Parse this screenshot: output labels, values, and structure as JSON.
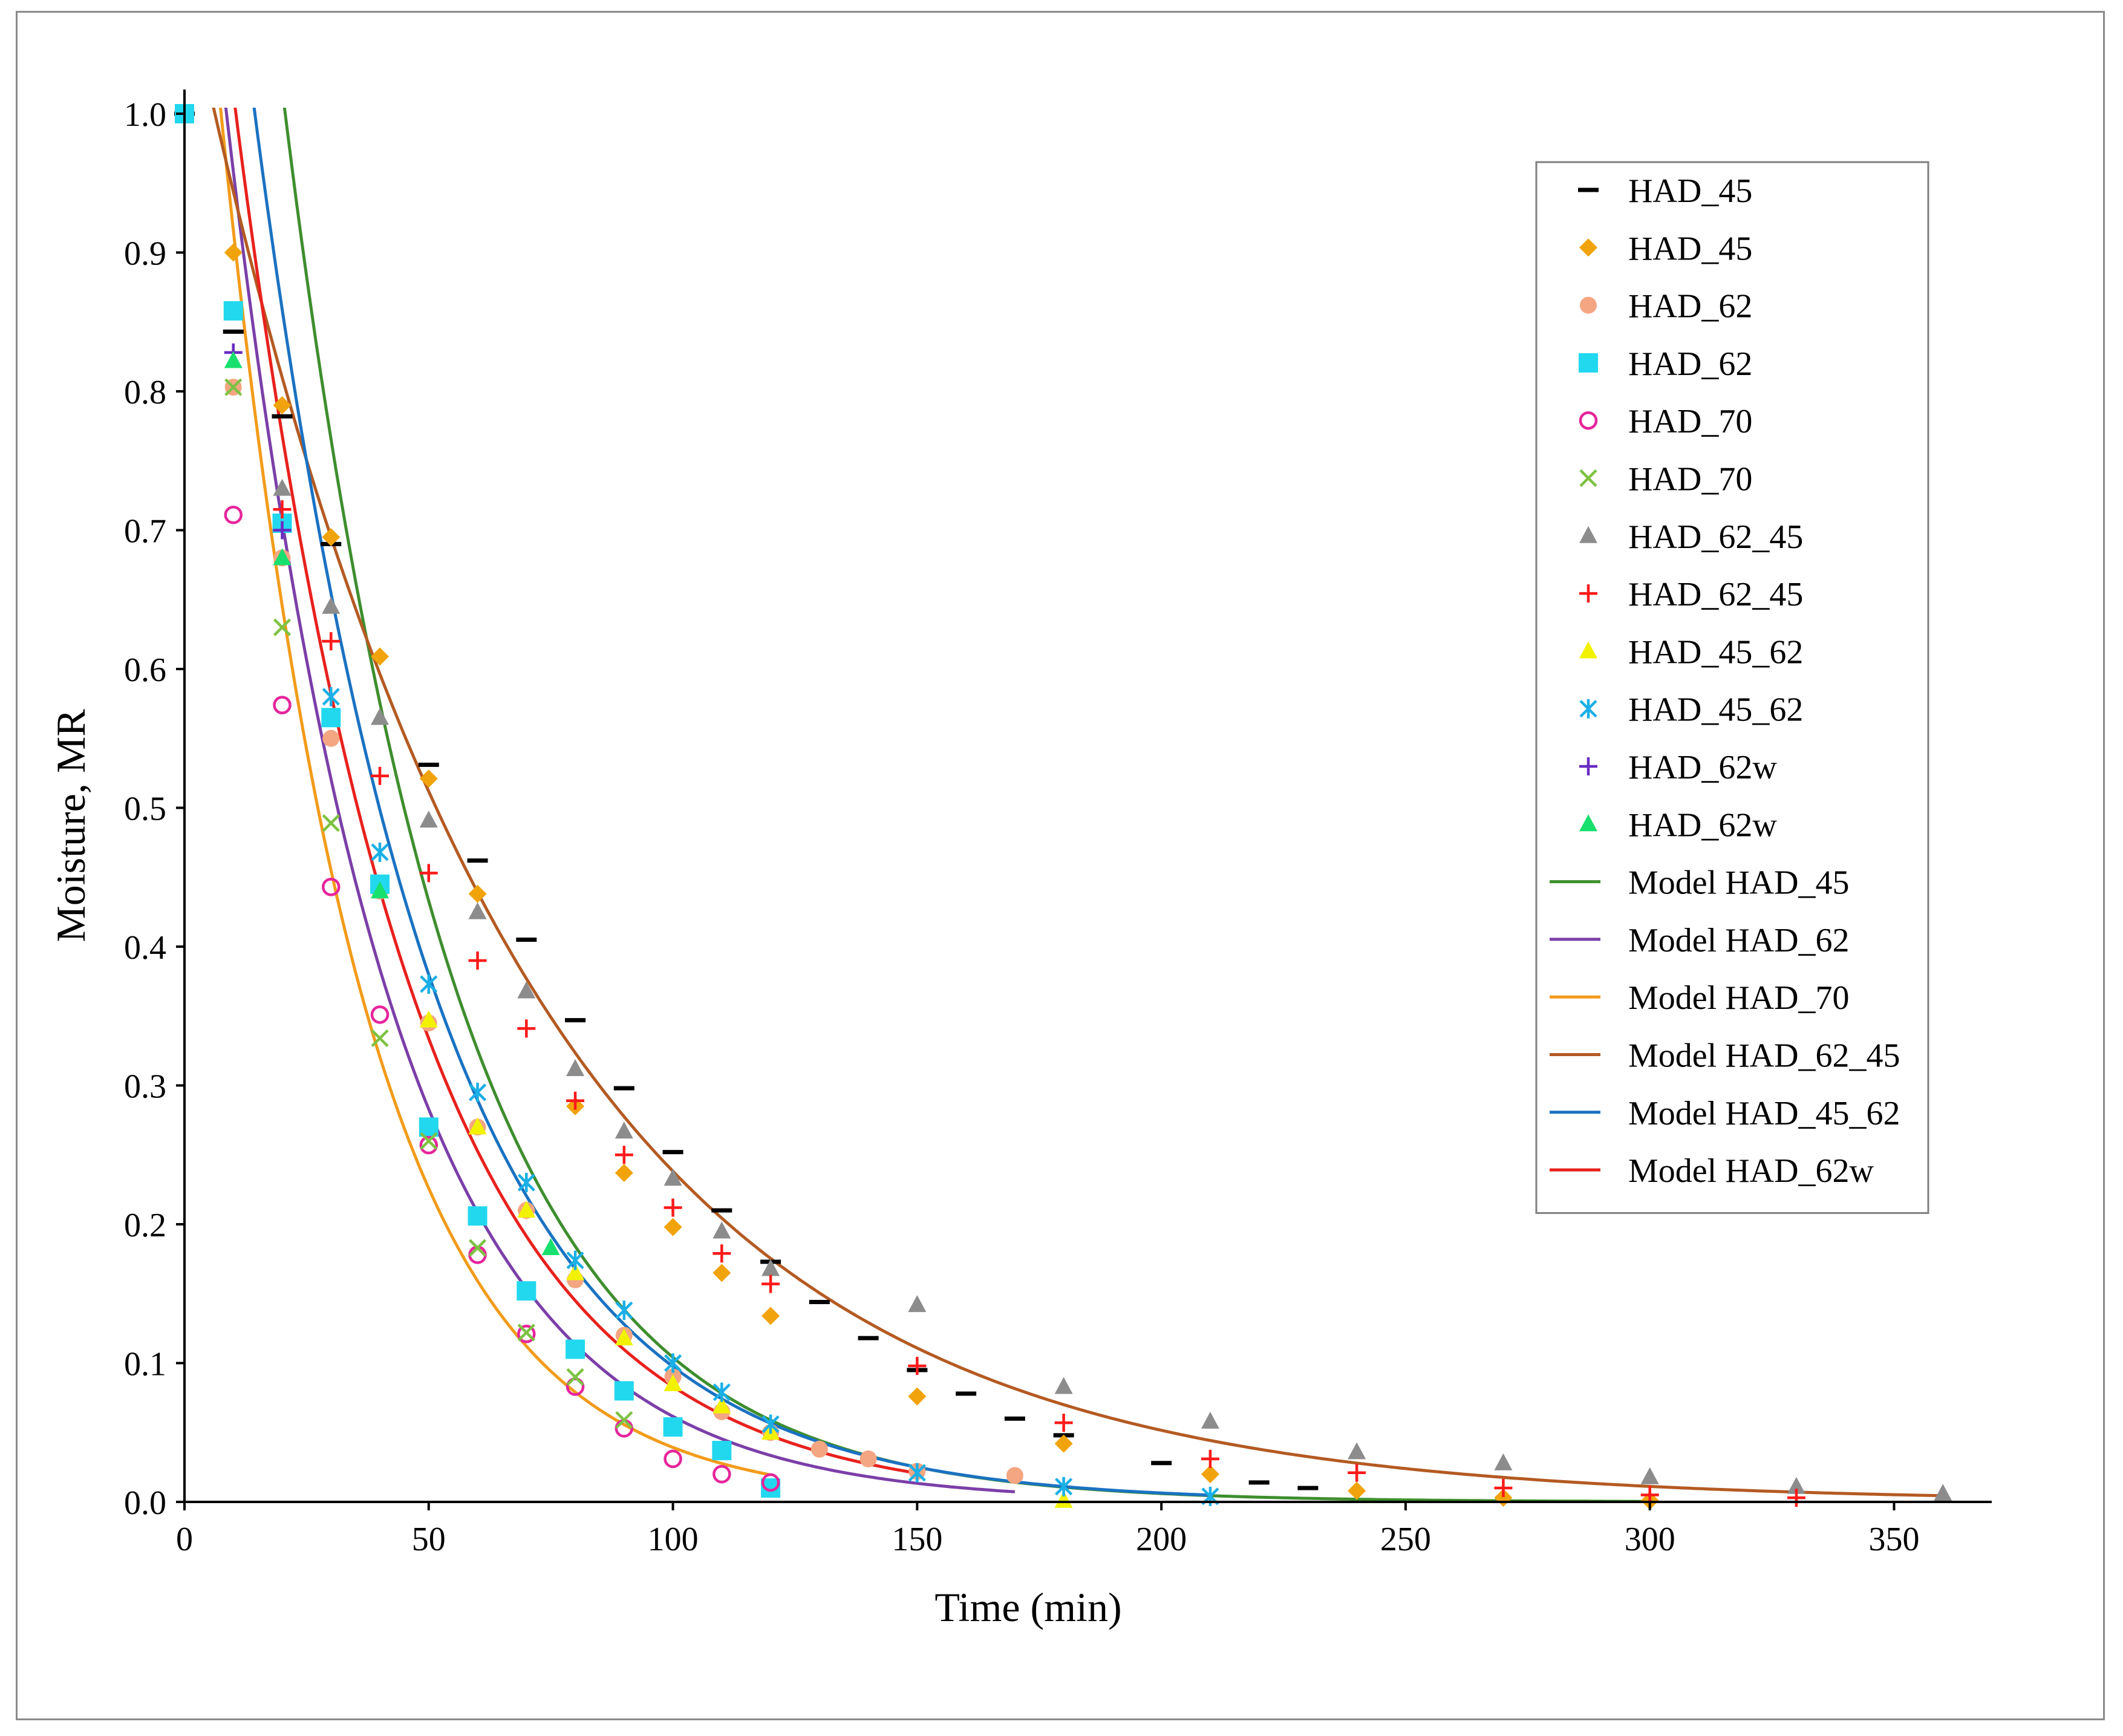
{
  "chart_data": {
    "type": "scatter",
    "title": "",
    "xlabel": "Time (min)",
    "ylabel": "Moisture, MR",
    "xlim": [
      0,
      370
    ],
    "ylim": [
      0,
      1.0
    ],
    "xticks": [
      0,
      50,
      100,
      150,
      200,
      250,
      300,
      350
    ],
    "yticks": [
      0.0,
      0.1,
      0.2,
      0.3,
      0.4,
      0.5,
      0.6,
      0.7,
      0.8,
      0.9,
      1.0
    ],
    "ytick_labels": [
      "0.0",
      "0.1",
      "0.2",
      "0.3",
      "0.4",
      "0.5",
      "0.6",
      "0.7",
      "0.8",
      "0.9",
      "1.0"
    ],
    "grid": false,
    "legend_position": "top-right",
    "series": [
      {
        "name": "HAD_45",
        "marker": "dash",
        "color": "#000000",
        "x": [
          0,
          10,
          20,
          30,
          50,
          60,
          70,
          80,
          90,
          100,
          110,
          120,
          130,
          140,
          150,
          160,
          170,
          180,
          200,
          220,
          230
        ],
        "y": [
          1.0,
          0.843,
          0.782,
          0.69,
          0.531,
          0.462,
          0.405,
          0.347,
          0.298,
          0.252,
          0.21,
          0.173,
          0.144,
          0.118,
          0.095,
          0.078,
          0.06,
          0.048,
          0.028,
          0.014,
          0.01
        ]
      },
      {
        "name": "HAD_45",
        "marker": "diamond",
        "color": "#F0A30A",
        "x": [
          0,
          10,
          20,
          30,
          40,
          50,
          60,
          70,
          80,
          90,
          100,
          110,
          120,
          150,
          180,
          210,
          240,
          270,
          300
        ],
        "y": [
          1.0,
          0.9,
          0.79,
          0.695,
          0.609,
          0.521,
          0.438,
          0.21,
          0.285,
          0.237,
          0.198,
          0.165,
          0.134,
          0.076,
          0.042,
          0.02,
          0.008,
          0.003,
          0.001
        ]
      },
      {
        "name": "HAD_62",
        "marker": "circle",
        "color": "#F4A582",
        "x": [
          0,
          10,
          20,
          30,
          40,
          50,
          60,
          70,
          80,
          90,
          100,
          110,
          120,
          130,
          140,
          150,
          170
        ],
        "y": [
          1.0,
          0.803,
          0.68,
          0.55,
          0.44,
          0.345,
          0.27,
          0.21,
          0.16,
          0.12,
          0.09,
          0.065,
          0.05,
          0.038,
          0.031,
          0.022,
          0.019
        ]
      },
      {
        "name": "HAD_62",
        "marker": "square",
        "color": "#22D8EE",
        "x": [
          0,
          10,
          20,
          30,
          40,
          50,
          60,
          70,
          80,
          90,
          100,
          110,
          120
        ],
        "y": [
          1.0,
          0.858,
          0.705,
          0.565,
          0.445,
          0.27,
          0.206,
          0.152,
          0.11,
          0.08,
          0.054,
          0.037,
          0.01
        ]
      },
      {
        "name": "HAD_70",
        "marker": "open-circle",
        "color": "#E6259B",
        "x": [
          10,
          20,
          30,
          40,
          50,
          60,
          70,
          80,
          90,
          100,
          110,
          120
        ],
        "y": [
          0.711,
          0.574,
          0.443,
          0.351,
          0.257,
          0.178,
          0.121,
          0.083,
          0.053,
          0.031,
          0.02,
          0.014
        ]
      },
      {
        "name": "HAD_70",
        "marker": "x",
        "color": "#7DC242",
        "x": [
          10,
          20,
          30,
          40,
          50,
          60,
          70,
          80,
          90
        ],
        "y": [
          0.803,
          0.63,
          0.489,
          0.334,
          0.26,
          0.183,
          0.122,
          0.09,
          0.059
        ]
      },
      {
        "name": "HAD_62_45",
        "marker": "triangle",
        "color": "#8C8C8C",
        "x": [
          20,
          30,
          40,
          50,
          60,
          70,
          80,
          90,
          100,
          110,
          120,
          150,
          180,
          210,
          240,
          270,
          300,
          330,
          360
        ],
        "y": [
          0.73,
          0.645,
          0.565,
          0.491,
          0.425,
          0.368,
          0.312,
          0.267,
          0.233,
          0.195,
          0.168,
          0.142,
          0.083,
          0.058,
          0.036,
          0.028,
          0.018,
          0.011,
          0.006
        ]
      },
      {
        "name": "HAD_62_45",
        "marker": "plus",
        "color": "#FF1A1A",
        "x": [
          20,
          30,
          40,
          50,
          60,
          70,
          80,
          90,
          100,
          110,
          120,
          150,
          180,
          210,
          240,
          270,
          300,
          330
        ],
        "y": [
          0.715,
          0.62,
          0.523,
          0.453,
          0.39,
          0.341,
          0.289,
          0.25,
          0.212,
          0.179,
          0.157,
          0.098,
          0.057,
          0.031,
          0.021,
          0.01,
          0.005,
          0.003
        ]
      },
      {
        "name": "HAD_45_62",
        "marker": "triangle",
        "color": "#F2F200",
        "x": [
          50,
          60,
          70,
          80,
          90,
          100,
          110,
          120,
          180
        ],
        "y": [
          0.347,
          0.27,
          0.21,
          0.165,
          0.118,
          0.085,
          0.069,
          0.05,
          0.001
        ]
      },
      {
        "name": "HAD_45_62",
        "marker": "asterisk",
        "color": "#1AAFE6",
        "x": [
          30,
          40,
          50,
          60,
          70,
          80,
          90,
          100,
          110,
          120,
          150,
          180,
          210
        ],
        "y": [
          0.58,
          0.468,
          0.373,
          0.295,
          0.23,
          0.174,
          0.138,
          0.1,
          0.079,
          0.056,
          0.021,
          0.011,
          0.004
        ]
      },
      {
        "name": "HAD_62w",
        "marker": "plus",
        "color": "#6A2BC2",
        "x": [
          10,
          20
        ],
        "y": [
          0.828,
          0.7
        ]
      },
      {
        "name": "HAD_62w",
        "marker": "triangle",
        "color": "#18E06E",
        "x": [
          10,
          20,
          40,
          75
        ],
        "y": [
          0.822,
          0.68,
          0.44,
          0.183
        ]
      }
    ],
    "models": [
      {
        "name": "Model HAD_45",
        "color": "#3E8E2E",
        "A": 1.8,
        "k": 0.0285,
        "xmax": 300
      },
      {
        "name": "Model HAD_62",
        "color": "#7B3FA8",
        "A": 1.3,
        "k": 0.0305,
        "xmax": 170
      },
      {
        "name": "Model HAD_70",
        "color": "#F29B1A",
        "A": 1.3,
        "k": 0.035,
        "xmax": 120
      },
      {
        "name": "Model HAD_62_45",
        "color": "#B45A22",
        "A": 1.1,
        "k": 0.0153,
        "xmax": 360
      },
      {
        "name": "Model HAD_45_62",
        "color": "#1A72C2",
        "A": 1.48,
        "k": 0.0272,
        "xmax": 210
      },
      {
        "name": "Model HAD_62w",
        "color": "#E8211D",
        "A": 1.34,
        "k": 0.0278,
        "xmax": 150
      }
    ]
  }
}
